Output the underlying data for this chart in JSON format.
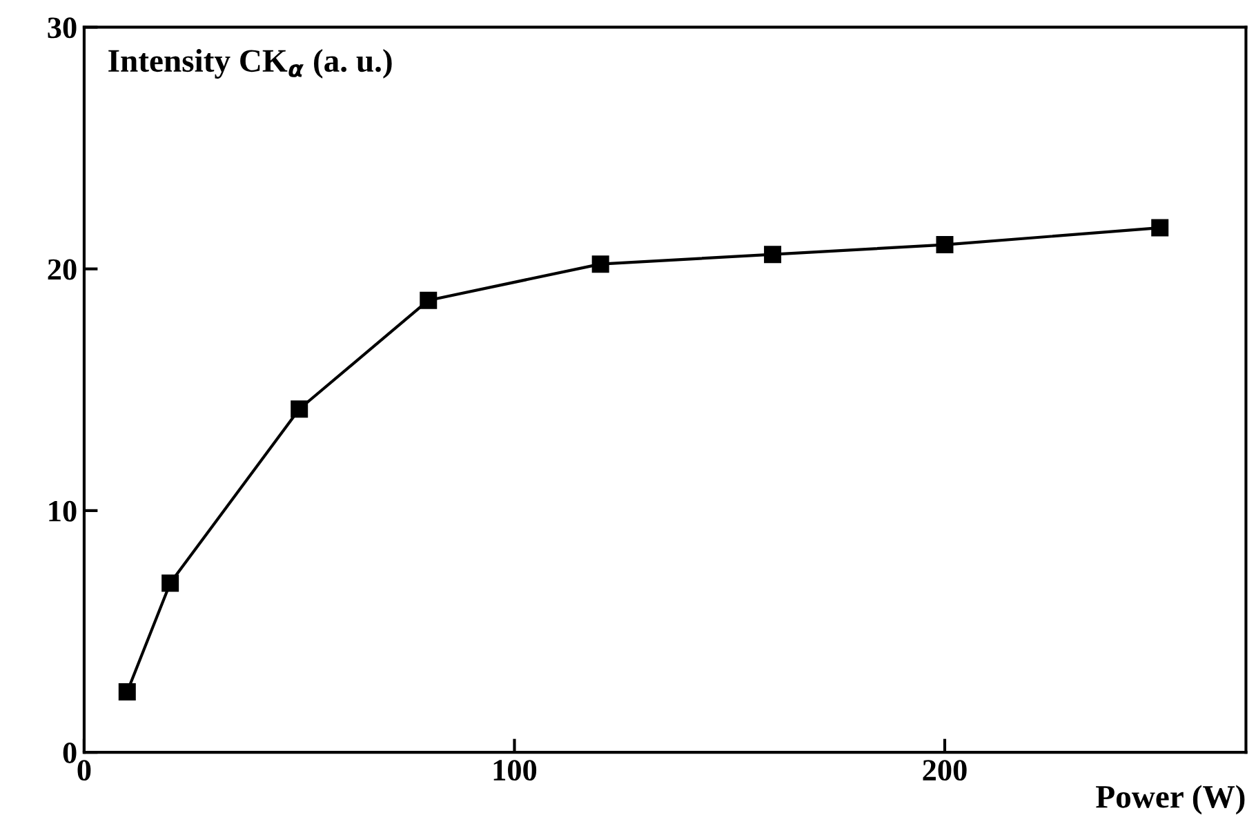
{
  "chart_data": {
    "type": "line",
    "xlabel": "Power (W)",
    "ylabel": "Intensity CK$_{α}$ (a. u.)",
    "x": [
      10,
      20,
      50,
      80,
      120,
      160,
      200,
      250
    ],
    "series": [
      {
        "color": "#000000",
        "values": [
          2.5,
          7.0,
          14.2,
          18.7,
          20.2,
          20.6,
          21.0,
          21.7
        ]
      }
    ],
    "xlim": [
      0,
      270
    ],
    "ylim": [
      0,
      30
    ],
    "xticks": [
      0,
      100,
      200
    ],
    "yticks": [
      0,
      10,
      20,
      30
    ],
    "marker": "square",
    "line_style": "solid",
    "grid": false,
    "legend": false
  }
}
